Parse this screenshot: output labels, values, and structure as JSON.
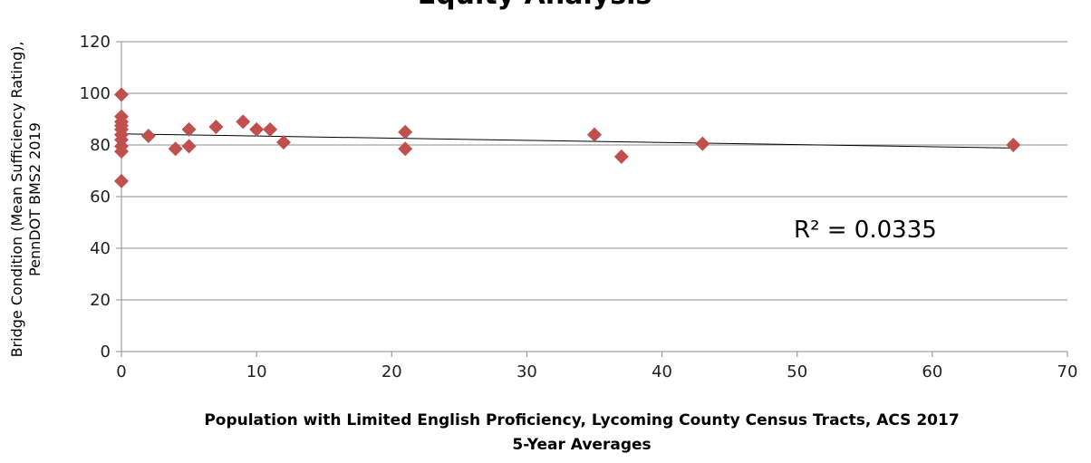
{
  "chart_data": {
    "type": "scatter",
    "title": "Equity Analysis",
    "xlabel_lines": [
      "Population with Limited English Proficiency, Lycoming County Census Tracts, ACS 2017",
      "5-Year Averages"
    ],
    "ylabel_lines": [
      "Bridge Condition (Mean Sufficiency Rating),",
      "PennDOT BMS2 2019"
    ],
    "xlim": [
      0,
      70
    ],
    "ylim": [
      0,
      120
    ],
    "xticks": [
      "0",
      "10",
      "20",
      "30",
      "40",
      "50",
      "60",
      "70"
    ],
    "yticks": [
      "0",
      "20",
      "40",
      "60",
      "80",
      "100",
      "120"
    ],
    "grid": "horizontal",
    "marker_color": "#c0504d",
    "trendline_color": "#000000",
    "trendline": {
      "x": [
        0,
        66
      ],
      "y": [
        84.3,
        78.8
      ]
    },
    "r_squared_label": "R² = 0.0335",
    "points": [
      {
        "x": 0,
        "y": 99.5
      },
      {
        "x": 0,
        "y": 91
      },
      {
        "x": 0,
        "y": 89
      },
      {
        "x": 0,
        "y": 87.5
      },
      {
        "x": 0,
        "y": 86
      },
      {
        "x": 0,
        "y": 84
      },
      {
        "x": 0,
        "y": 82
      },
      {
        "x": 0,
        "y": 79.5
      },
      {
        "x": 0,
        "y": 77.5
      },
      {
        "x": 0,
        "y": 66
      },
      {
        "x": 2,
        "y": 83.5
      },
      {
        "x": 4,
        "y": 78.5
      },
      {
        "x": 5,
        "y": 86
      },
      {
        "x": 5,
        "y": 79.5
      },
      {
        "x": 7,
        "y": 87
      },
      {
        "x": 9,
        "y": 89
      },
      {
        "x": 10,
        "y": 86
      },
      {
        "x": 11,
        "y": 86
      },
      {
        "x": 12,
        "y": 81
      },
      {
        "x": 21,
        "y": 85
      },
      {
        "x": 21,
        "y": 78.5
      },
      {
        "x": 35,
        "y": 84
      },
      {
        "x": 37,
        "y": 75.5
      },
      {
        "x": 43,
        "y": 80.5
      },
      {
        "x": 66,
        "y": 80
      }
    ]
  }
}
